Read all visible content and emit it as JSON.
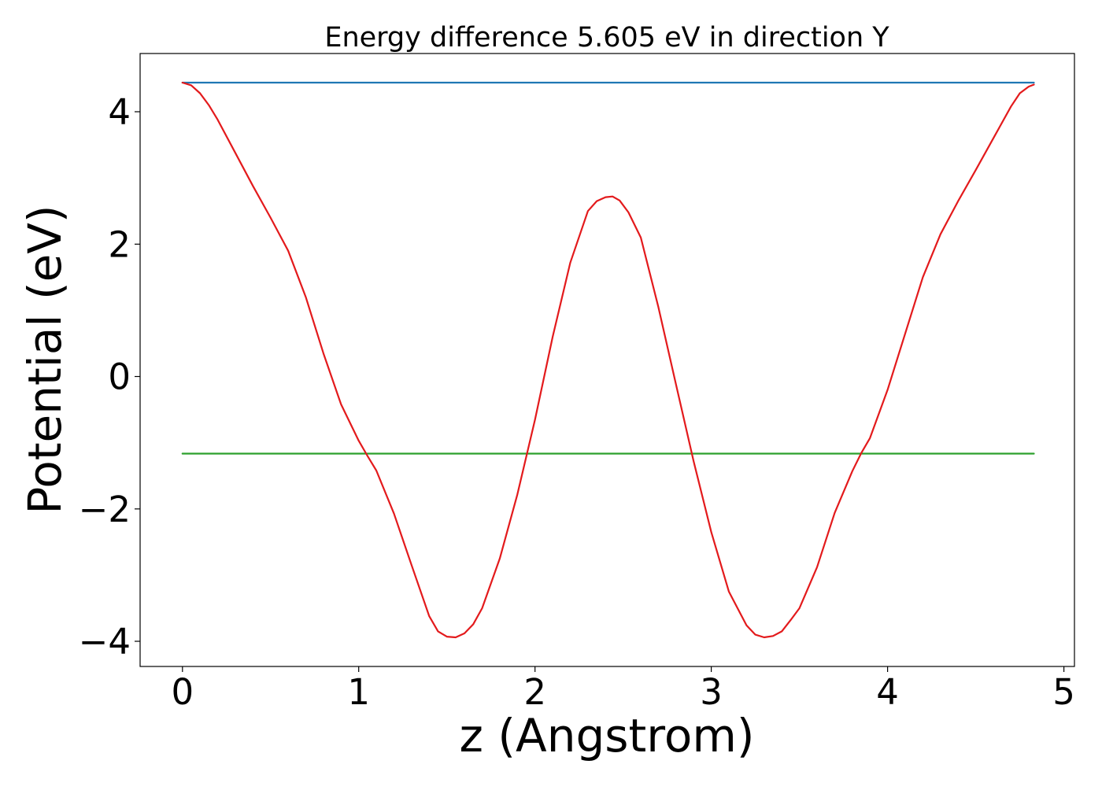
{
  "chart_data": {
    "type": "line",
    "title": "Energy difference 5.605 eV in direction Y",
    "xlabel": "z (Angstrom)",
    "ylabel": "Potential (eV)",
    "xlim": [
      -0.24,
      5.06
    ],
    "ylim": [
      -4.38,
      4.88
    ],
    "xticks": [
      0,
      1,
      2,
      3,
      4,
      5
    ],
    "xtick_labels": [
      "0",
      "1",
      "2",
      "3",
      "4",
      "5"
    ],
    "yticks": [
      -4,
      -2,
      0,
      2,
      4
    ],
    "ytick_labels": [
      "−4",
      "−2",
      "0",
      "2",
      "4"
    ],
    "grid": false,
    "legend": "none",
    "series": [
      {
        "color": "#1f77b4",
        "x": [
          0.0,
          4.83
        ],
        "y": [
          4.44,
          4.44
        ]
      },
      {
        "color": "#2ca02c",
        "x": [
          0.0,
          4.83
        ],
        "y": [
          -1.165,
          -1.165
        ]
      },
      {
        "color": "#e31a1c",
        "x": [
          0.0,
          0.05,
          0.1,
          0.15,
          0.2,
          0.3,
          0.4,
          0.5,
          0.6,
          0.7,
          0.8,
          0.9,
          1.0,
          1.05,
          1.1,
          1.2,
          1.3,
          1.4,
          1.45,
          1.5,
          1.55,
          1.6,
          1.65,
          1.7,
          1.8,
          1.9,
          2.0,
          2.1,
          2.2,
          2.3,
          2.35,
          2.4,
          2.44,
          2.48,
          2.53,
          2.6,
          2.7,
          2.8,
          2.9,
          3.0,
          3.1,
          3.2,
          3.25,
          3.3,
          3.35,
          3.4,
          3.45,
          3.5,
          3.6,
          3.7,
          3.8,
          3.85,
          3.9,
          4.0,
          4.1,
          4.2,
          4.3,
          4.4,
          4.5,
          4.6,
          4.7,
          4.75,
          4.8,
          4.83
        ],
        "y": [
          4.44,
          4.4,
          4.28,
          4.1,
          3.88,
          3.38,
          2.88,
          2.4,
          1.9,
          1.2,
          0.35,
          -0.42,
          -0.97,
          -1.2,
          -1.42,
          -2.07,
          -2.85,
          -3.62,
          -3.85,
          -3.93,
          -3.94,
          -3.88,
          -3.74,
          -3.5,
          -2.75,
          -1.78,
          -0.65,
          0.6,
          1.72,
          2.5,
          2.65,
          2.71,
          2.72,
          2.66,
          2.48,
          2.1,
          1.05,
          -0.12,
          -1.28,
          -2.35,
          -3.25,
          -3.76,
          -3.9,
          -3.94,
          -3.92,
          -3.85,
          -3.68,
          -3.5,
          -2.88,
          -2.06,
          -1.43,
          -1.16,
          -0.93,
          -0.2,
          0.65,
          1.5,
          2.15,
          2.65,
          3.12,
          3.6,
          4.08,
          4.28,
          4.38,
          4.41
        ]
      }
    ]
  }
}
